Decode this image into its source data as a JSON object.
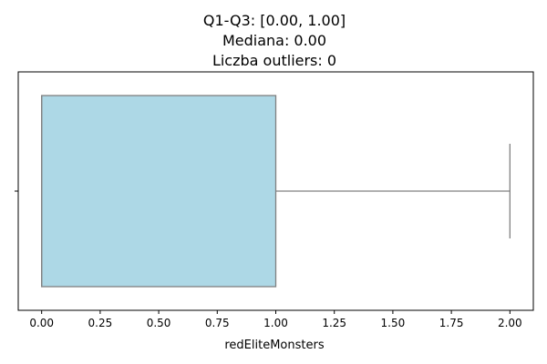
{
  "chart_data": {
    "type": "box",
    "orientation": "horizontal",
    "title": [
      "Q1-Q3: [0.00, 1.00]",
      "Mediana: 0.00",
      "Liczba outliers: 0"
    ],
    "xlabel": "redEliteMonsters",
    "ylabel": "",
    "xlim": [
      -0.1,
      2.1
    ],
    "x_ticks": [
      0.0,
      0.25,
      0.5,
      0.75,
      1.0,
      1.25,
      1.5,
      1.75,
      2.0
    ],
    "x_tick_labels": [
      "0.00",
      "0.25",
      "0.50",
      "0.75",
      "1.00",
      "1.25",
      "1.50",
      "1.75",
      "2.00"
    ],
    "box": {
      "whisker_low": 0.0,
      "q1": 0.0,
      "median": 0.0,
      "q3": 1.0,
      "whisker_high": 2.0,
      "outliers": []
    },
    "grid": false,
    "colors": {
      "box_fill": "#add8e6",
      "box_edge": "#808080",
      "axis": "#000000"
    }
  }
}
